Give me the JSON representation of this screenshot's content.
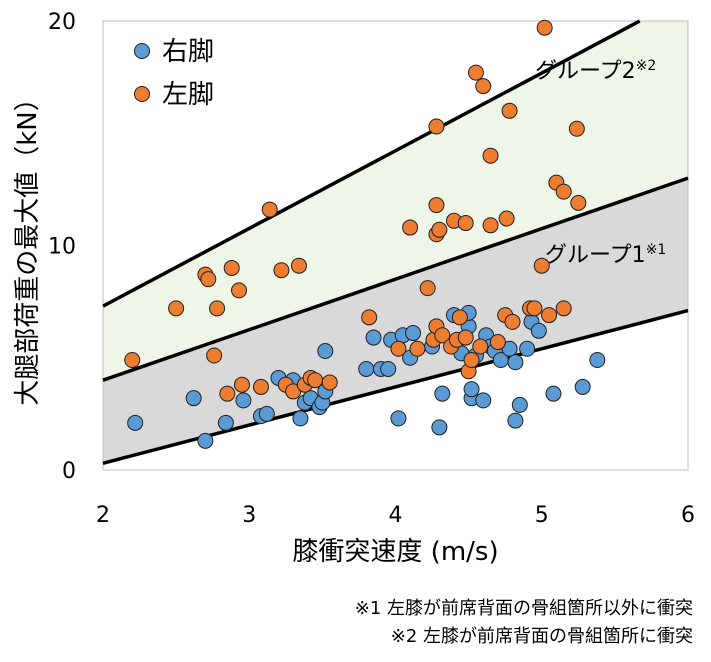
{
  "chart_data": {
    "type": "scatter",
    "title": "",
    "xlabel": "膝衝突速度 (m/s)",
    "ylabel": "大腿部荷重の最大値（kN）",
    "xlim": [
      2,
      6
    ],
    "ylim": [
      0,
      20
    ],
    "x_ticks": [
      "2",
      "3",
      "4",
      "5",
      "6"
    ],
    "y_ticks": [
      "0",
      "10",
      "20"
    ],
    "grid": false,
    "legend_position": "top-left",
    "bands": [
      {
        "label": "グループ1",
        "sup": "※1",
        "color": "#d9d9d9",
        "lower_line": [
          [
            2,
            0.3
          ],
          [
            6,
            7.1
          ]
        ],
        "upper_line": [
          [
            2,
            4.0
          ],
          [
            6,
            13.0
          ]
        ]
      },
      {
        "label": "グループ2",
        "sup": "※2",
        "color": "#eef6e8",
        "lower_line": [
          [
            2,
            4.0
          ],
          [
            6,
            13.0
          ]
        ],
        "upper_line": [
          [
            2,
            7.3
          ],
          [
            5.67,
            20
          ]
        ]
      }
    ],
    "series": [
      {
        "name": "右脚",
        "color": "#5b9bd5",
        "points": [
          [
            2.22,
            2.1
          ],
          [
            2.62,
            3.2
          ],
          [
            2.7,
            1.3
          ],
          [
            2.84,
            2.1
          ],
          [
            2.96,
            3.1
          ],
          [
            3.08,
            2.4
          ],
          [
            3.12,
            2.5
          ],
          [
            3.2,
            4.1
          ],
          [
            3.28,
            3.7
          ],
          [
            3.3,
            4.0
          ],
          [
            3.35,
            2.3
          ],
          [
            3.38,
            3.0
          ],
          [
            3.42,
            3.2
          ],
          [
            3.48,
            2.8
          ],
          [
            3.5,
            3.0
          ],
          [
            3.52,
            5.3
          ],
          [
            3.52,
            3.5
          ],
          [
            3.8,
            4.5
          ],
          [
            3.85,
            5.9
          ],
          [
            3.9,
            4.5
          ],
          [
            3.95,
            4.5
          ],
          [
            3.97,
            5.8
          ],
          [
            4.02,
            2.3
          ],
          [
            4.05,
            6.0
          ],
          [
            4.1,
            5.0
          ],
          [
            4.12,
            6.1
          ],
          [
            4.25,
            5.5
          ],
          [
            4.3,
            1.9
          ],
          [
            4.32,
            3.4
          ],
          [
            4.4,
            6.9
          ],
          [
            4.45,
            5.2
          ],
          [
            4.5,
            6.4
          ],
          [
            4.5,
            7.0
          ],
          [
            4.52,
            3.2
          ],
          [
            4.52,
            3.6
          ],
          [
            4.55,
            5.1
          ],
          [
            4.6,
            3.1
          ],
          [
            4.62,
            6.0
          ],
          [
            4.65,
            5.5
          ],
          [
            4.68,
            5.3
          ],
          [
            4.72,
            4.9
          ],
          [
            4.78,
            5.4
          ],
          [
            4.82,
            2.2
          ],
          [
            4.85,
            2.9
          ],
          [
            4.9,
            5.4
          ],
          [
            4.93,
            6.6
          ],
          [
            4.98,
            6.2
          ],
          [
            5.08,
            3.4
          ],
          [
            5.28,
            3.7
          ],
          [
            5.38,
            4.9
          ],
          [
            4.82,
            4.8
          ]
        ]
      },
      {
        "name": "左脚",
        "color": "#ed7d31",
        "points": [
          [
            2.2,
            4.9
          ],
          [
            2.5,
            7.2
          ],
          [
            2.7,
            8.7
          ],
          [
            2.72,
            8.5
          ],
          [
            2.76,
            5.1
          ],
          [
            2.78,
            7.2
          ],
          [
            2.85,
            3.4
          ],
          [
            2.88,
            9.0
          ],
          [
            2.93,
            8.0
          ],
          [
            2.95,
            3.8
          ],
          [
            3.08,
            3.7
          ],
          [
            3.14,
            11.6
          ],
          [
            3.22,
            8.9
          ],
          [
            3.25,
            3.8
          ],
          [
            3.3,
            3.5
          ],
          [
            3.34,
            9.1
          ],
          [
            3.38,
            3.8
          ],
          [
            3.42,
            4.1
          ],
          [
            3.45,
            4.0
          ],
          [
            3.55,
            3.9
          ],
          [
            3.82,
            6.8
          ],
          [
            4.02,
            5.4
          ],
          [
            4.1,
            10.8
          ],
          [
            4.15,
            5.4
          ],
          [
            4.22,
            8.1
          ],
          [
            4.26,
            5.8
          ],
          [
            4.28,
            6.4
          ],
          [
            4.28,
            10.5
          ],
          [
            4.3,
            10.7
          ],
          [
            4.32,
            6.0
          ],
          [
            4.38,
            5.5
          ],
          [
            4.4,
            11.1
          ],
          [
            4.42,
            5.8
          ],
          [
            4.44,
            6.8
          ],
          [
            4.48,
            5.9
          ],
          [
            4.48,
            11.0
          ],
          [
            4.5,
            4.4
          ],
          [
            4.28,
            15.3
          ],
          [
            4.28,
            11.8
          ],
          [
            4.52,
            4.9
          ],
          [
            4.55,
            17.7
          ],
          [
            4.58,
            5.5
          ],
          [
            4.6,
            17.1
          ],
          [
            4.65,
            14.0
          ],
          [
            4.65,
            10.9
          ],
          [
            4.7,
            5.7
          ],
          [
            4.75,
            6.9
          ],
          [
            4.76,
            11.2
          ],
          [
            4.78,
            16.0
          ],
          [
            4.8,
            6.6
          ],
          [
            4.92,
            7.2
          ],
          [
            5.0,
            9.1
          ],
          [
            5.02,
            19.7
          ],
          [
            5.05,
            6.9
          ],
          [
            5.1,
            12.8
          ],
          [
            5.15,
            12.4
          ],
          [
            5.15,
            7.2
          ],
          [
            5.24,
            15.2
          ],
          [
            5.25,
            11.9
          ],
          [
            4.95,
            7.2
          ]
        ]
      }
    ]
  },
  "notes": [
    "※1 左膝が前席背面の骨組箇所以外に衝突",
    "※2 左膝が前席背面の骨組箇所に衝突"
  ]
}
